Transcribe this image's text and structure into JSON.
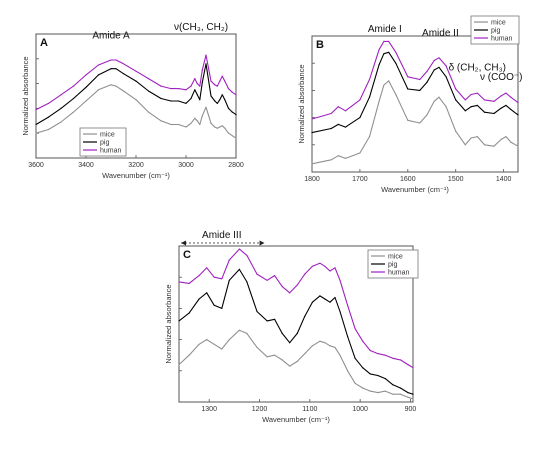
{
  "chart_data": [
    {
      "type": "line",
      "panel": "A",
      "xlabel": "Wavenumber (cm⁻¹)",
      "ylabel": "Normalized absorbance",
      "xlim": [
        3600,
        2800
      ],
      "ylim": [
        0,
        1
      ],
      "x_reversed": true,
      "xticks": [
        3600,
        3400,
        3200,
        3000,
        2800
      ],
      "annotations": [
        {
          "text": "Amide A",
          "x": 3300,
          "y": 0.93
        },
        {
          "text": "ν(CH₃, CH₂)",
          "x": 2940,
          "y": 1.0
        }
      ],
      "legend": [
        "mice",
        "pig",
        "human"
      ],
      "legend_position": "bottom-left",
      "series": [
        {
          "name": "mice",
          "color": "#909090",
          "x": [
            3600,
            3550,
            3500,
            3450,
            3400,
            3350,
            3300,
            3280,
            3250,
            3200,
            3150,
            3100,
            3060,
            3030,
            3000,
            2980,
            2965,
            2955,
            2945,
            2935,
            2920,
            2900,
            2885,
            2875,
            2865,
            2855,
            2845,
            2830,
            2815,
            2800
          ],
          "y": [
            0.2,
            0.23,
            0.29,
            0.37,
            0.46,
            0.55,
            0.59,
            0.58,
            0.54,
            0.47,
            0.37,
            0.3,
            0.27,
            0.27,
            0.25,
            0.28,
            0.32,
            0.3,
            0.27,
            0.34,
            0.41,
            0.28,
            0.25,
            0.24,
            0.25,
            0.26,
            0.24,
            0.2,
            0.18,
            0.16
          ]
        },
        {
          "name": "pig",
          "color": "#000000",
          "x": [
            3600,
            3550,
            3500,
            3450,
            3400,
            3350,
            3300,
            3280,
            3250,
            3200,
            3150,
            3100,
            3060,
            3030,
            3000,
            2980,
            2965,
            2955,
            2945,
            2935,
            2920,
            2900,
            2885,
            2875,
            2865,
            2855,
            2845,
            2830,
            2815,
            2800
          ],
          "y": [
            0.27,
            0.33,
            0.4,
            0.48,
            0.57,
            0.67,
            0.72,
            0.72,
            0.68,
            0.62,
            0.54,
            0.48,
            0.46,
            0.46,
            0.44,
            0.48,
            0.55,
            0.51,
            0.47,
            0.61,
            0.76,
            0.5,
            0.46,
            0.44,
            0.47,
            0.51,
            0.47,
            0.4,
            0.37,
            0.35
          ]
        },
        {
          "name": "human",
          "color": "#a020c0",
          "x": [
            3600,
            3550,
            3500,
            3450,
            3400,
            3350,
            3300,
            3280,
            3250,
            3200,
            3150,
            3100,
            3060,
            3030,
            3000,
            2980,
            2965,
            2955,
            2945,
            2935,
            2920,
            2900,
            2885,
            2875,
            2865,
            2855,
            2845,
            2830,
            2815,
            2800
          ],
          "y": [
            0.39,
            0.44,
            0.51,
            0.58,
            0.67,
            0.75,
            0.79,
            0.79,
            0.76,
            0.7,
            0.64,
            0.58,
            0.56,
            0.56,
            0.55,
            0.58,
            0.64,
            0.6,
            0.58,
            0.71,
            0.83,
            0.62,
            0.59,
            0.58,
            0.62,
            0.66,
            0.62,
            0.56,
            0.53,
            0.51
          ]
        }
      ]
    },
    {
      "type": "line",
      "panel": "B",
      "xlabel": "Wavenumber (cm⁻¹)",
      "ylabel": "Normalized absorbance",
      "xlim": [
        1800,
        1370
      ],
      "ylim": [
        0,
        1
      ],
      "x_reversed": true,
      "xticks": [
        1800,
        1700,
        1600,
        1500,
        1400
      ],
      "annotations": [
        {
          "text": "Amide I",
          "x": 1648,
          "y": 1.0
        },
        {
          "text": "Amide II",
          "x": 1532,
          "y": 0.97
        },
        {
          "text": "δ (CH₂, CH₃)",
          "x": 1455,
          "y": 0.73
        },
        {
          "text": "ν (COO⁻)",
          "x": 1405,
          "y": 0.66
        }
      ],
      "legend": [
        "mice",
        "pig",
        "human"
      ],
      "legend_position": "top-right",
      "series": [
        {
          "name": "mice",
          "color": "#909090",
          "x": [
            1800,
            1760,
            1745,
            1730,
            1700,
            1680,
            1660,
            1650,
            1640,
            1625,
            1600,
            1575,
            1560,
            1545,
            1535,
            1520,
            1500,
            1480,
            1468,
            1455,
            1440,
            1420,
            1405,
            1395,
            1385,
            1370
          ],
          "y": [
            0.06,
            0.09,
            0.12,
            0.1,
            0.14,
            0.26,
            0.52,
            0.64,
            0.67,
            0.57,
            0.38,
            0.36,
            0.42,
            0.52,
            0.55,
            0.48,
            0.3,
            0.2,
            0.25,
            0.26,
            0.2,
            0.19,
            0.24,
            0.26,
            0.22,
            0.19
          ]
        },
        {
          "name": "pig",
          "color": "#000000",
          "x": [
            1800,
            1760,
            1745,
            1730,
            1700,
            1680,
            1660,
            1650,
            1640,
            1625,
            1600,
            1575,
            1560,
            1545,
            1535,
            1520,
            1500,
            1480,
            1468,
            1455,
            1440,
            1420,
            1405,
            1395,
            1385,
            1370
          ],
          "y": [
            0.29,
            0.32,
            0.35,
            0.33,
            0.4,
            0.55,
            0.79,
            0.87,
            0.88,
            0.8,
            0.61,
            0.6,
            0.66,
            0.75,
            0.77,
            0.7,
            0.53,
            0.45,
            0.48,
            0.49,
            0.44,
            0.43,
            0.47,
            0.49,
            0.46,
            0.42
          ]
        },
        {
          "name": "human",
          "color": "#a020c0",
          "x": [
            1800,
            1760,
            1745,
            1730,
            1700,
            1680,
            1660,
            1650,
            1640,
            1625,
            1600,
            1575,
            1560,
            1545,
            1535,
            1520,
            1500,
            1480,
            1468,
            1455,
            1440,
            1420,
            1405,
            1395,
            1385,
            1370
          ],
          "y": [
            0.39,
            0.43,
            0.48,
            0.45,
            0.53,
            0.68,
            0.9,
            0.96,
            0.96,
            0.88,
            0.7,
            0.68,
            0.74,
            0.82,
            0.84,
            0.78,
            0.61,
            0.53,
            0.57,
            0.58,
            0.53,
            0.52,
            0.56,
            0.58,
            0.55,
            0.51
          ]
        }
      ]
    },
    {
      "type": "line",
      "panel": "C",
      "xlabel": "Wavenumber (cm⁻¹)",
      "ylabel": "Normalized absorbance",
      "xlim": [
        1360,
        895
      ],
      "ylim": [
        0,
        1
      ],
      "x_reversed": true,
      "xticks": [
        1300,
        1200,
        1100,
        1000,
        900
      ],
      "annotations": [
        {
          "text": "Amide III",
          "x": 1275,
          "y": 1.0,
          "span": [
            1360,
            1190
          ]
        }
      ],
      "legend": [
        "mice",
        "pig",
        "human"
      ],
      "legend_position": "top-right",
      "series": [
        {
          "name": "mice",
          "color": "#909090",
          "x": [
            1360,
            1340,
            1320,
            1305,
            1290,
            1275,
            1260,
            1240,
            1225,
            1205,
            1185,
            1170,
            1155,
            1140,
            1125,
            1110,
            1095,
            1080,
            1070,
            1060,
            1050,
            1040,
            1025,
            1010,
            995,
            980,
            965,
            950,
            935,
            920,
            905,
            895
          ],
          "y": [
            0.24,
            0.3,
            0.37,
            0.4,
            0.37,
            0.34,
            0.4,
            0.46,
            0.44,
            0.35,
            0.29,
            0.3,
            0.27,
            0.23,
            0.26,
            0.31,
            0.36,
            0.39,
            0.38,
            0.36,
            0.35,
            0.3,
            0.2,
            0.12,
            0.09,
            0.07,
            0.06,
            0.07,
            0.05,
            0.05,
            0.03,
            0.02
          ]
        },
        {
          "name": "pig",
          "color": "#000000",
          "x": [
            1360,
            1340,
            1320,
            1305,
            1290,
            1275,
            1260,
            1240,
            1225,
            1205,
            1185,
            1170,
            1155,
            1140,
            1125,
            1110,
            1095,
            1080,
            1070,
            1060,
            1050,
            1040,
            1025,
            1010,
            995,
            980,
            965,
            950,
            935,
            920,
            905,
            895
          ],
          "y": [
            0.52,
            0.57,
            0.66,
            0.7,
            0.62,
            0.6,
            0.78,
            0.85,
            0.77,
            0.58,
            0.52,
            0.53,
            0.44,
            0.38,
            0.44,
            0.55,
            0.64,
            0.68,
            0.66,
            0.64,
            0.67,
            0.58,
            0.42,
            0.28,
            0.22,
            0.18,
            0.17,
            0.15,
            0.11,
            0.09,
            0.06,
            0.05
          ]
        },
        {
          "name": "human",
          "color": "#a020c0",
          "x": [
            1360,
            1340,
            1320,
            1305,
            1290,
            1275,
            1260,
            1240,
            1225,
            1205,
            1185,
            1170,
            1155,
            1140,
            1125,
            1110,
            1095,
            1080,
            1070,
            1060,
            1050,
            1040,
            1025,
            1010,
            995,
            980,
            965,
            950,
            935,
            920,
            905,
            895
          ],
          "y": [
            0.77,
            0.76,
            0.81,
            0.86,
            0.8,
            0.79,
            0.91,
            0.98,
            0.94,
            0.82,
            0.78,
            0.81,
            0.74,
            0.7,
            0.75,
            0.82,
            0.87,
            0.89,
            0.87,
            0.84,
            0.86,
            0.78,
            0.62,
            0.47,
            0.39,
            0.33,
            0.31,
            0.3,
            0.28,
            0.27,
            0.24,
            0.22
          ]
        }
      ]
    }
  ]
}
